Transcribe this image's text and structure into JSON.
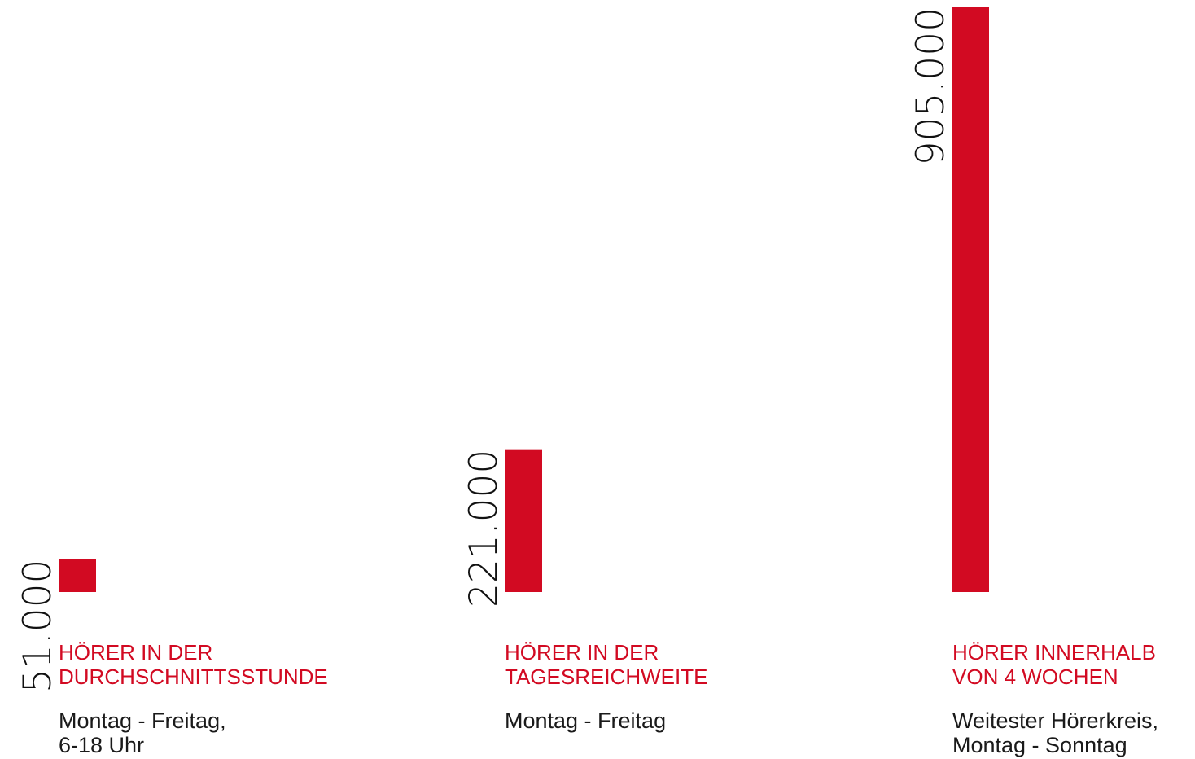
{
  "chart_data": {
    "type": "bar",
    "categories": [
      "HÖRER IN DER\nDURCHSCHNITTSSTUNDE",
      "HÖRER IN DER\nTAGESREICHWEITE",
      "HÖRER INNERHALB\nVON 4 WOCHEN"
    ],
    "subtitles": [
      "Montag - Freitag,\n6-18 Uhr",
      "Montag - Freitag",
      "Weitester Hörerkreis,\nMontag - Sonntag"
    ],
    "values": [
      51000,
      221000,
      905000
    ],
    "value_labels": [
      "51.000",
      "221.000",
      "905.000"
    ],
    "bar_color": "#d20a22",
    "title_color": "#d20a22",
    "text_color": "#1a1a1a",
    "grid": false,
    "legend": "none"
  }
}
